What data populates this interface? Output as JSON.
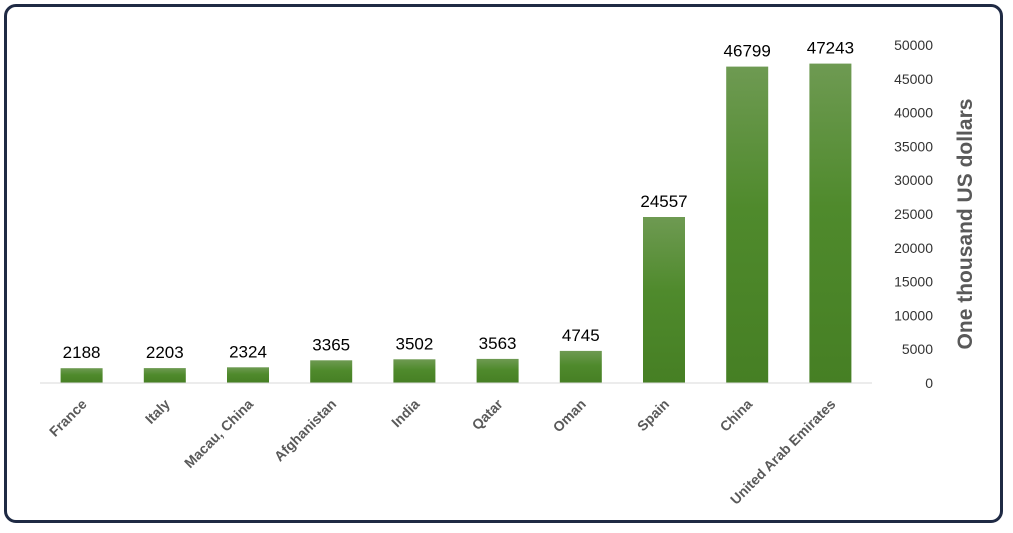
{
  "chart_data": {
    "type": "bar",
    "categories": [
      "France",
      "Italy",
      "Macau, China",
      "Afghanistan",
      "India",
      "Qatar",
      "Oman",
      "Spain",
      "China",
      "United Arab Emirates"
    ],
    "values": [
      2188,
      2203,
      2324,
      3365,
      3502,
      3563,
      4745,
      24557,
      46799,
      47243
    ],
    "value_labels": [
      "2188",
      "2203",
      "2324",
      "3365",
      "3502",
      "3563",
      "4745",
      "24557",
      "46799",
      "47243"
    ],
    "ylabel": "One thousand US dollars",
    "yticks": [
      "0",
      "5000",
      "10000",
      "15000",
      "20000",
      "25000",
      "30000",
      "35000",
      "40000",
      "45000",
      "50000"
    ],
    "ylim": [
      0,
      50000
    ],
    "yaxis_side": "right",
    "grid": false,
    "bar_color": "#4e8a2a"
  }
}
